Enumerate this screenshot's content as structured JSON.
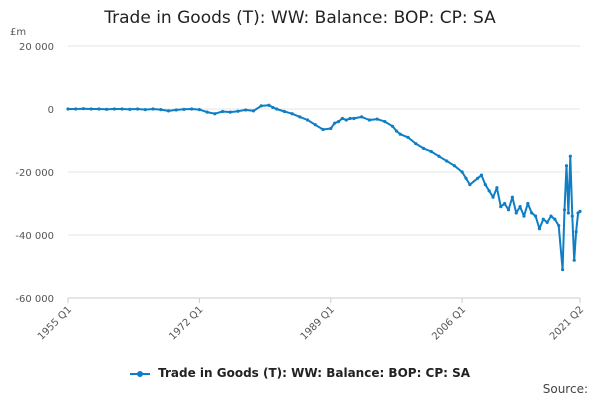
{
  "title": "Trade in Goods (T): WW: Balance: BOP: CP: SA",
  "source_label": "Source:",
  "legend": {
    "label": "Trade in Goods (T): WW: Balance: BOP: CP: SA"
  },
  "colors": {
    "series": "#0f7ec4",
    "grid": "#e6e6e6",
    "axis": "#cccccc"
  },
  "chart_data": {
    "type": "line",
    "title": "Trade in Goods (T): WW: Balance: BOP: CP: SA",
    "ylabel": "£m",
    "ylim": [
      -60000,
      20000
    ],
    "y_ticks": [
      20000,
      0,
      -20000,
      -40000,
      -60000
    ],
    "y_tick_labels": [
      "20 000",
      "0",
      "-20 000",
      "-40 000",
      "-60 000"
    ],
    "x_tick_labels": [
      "1955 Q1",
      "1972 Q1",
      "1989 Q1",
      "2006 Q1",
      "2021 Q2"
    ],
    "x_ticks": [
      1955.0,
      1972.0,
      1989.0,
      2006.0,
      2021.25
    ],
    "xlim": [
      1955.0,
      2021.25
    ],
    "grid": true,
    "legend_position": "bottom",
    "series": [
      {
        "name": "Trade in Goods (T): WW: Balance: BOP: CP: SA",
        "x": [
          1955.0,
          1956.0,
          1957.0,
          1958.0,
          1959.0,
          1960.0,
          1961.0,
          1962.0,
          1963.0,
          1964.0,
          1965.0,
          1966.0,
          1967.0,
          1968.0,
          1969.0,
          1970.0,
          1971.0,
          1972.0,
          1973.0,
          1974.0,
          1975.0,
          1976.0,
          1977.0,
          1978.0,
          1979.0,
          1980.0,
          1981.0,
          1981.5,
          1982.0,
          1983.0,
          1984.0,
          1985.0,
          1986.0,
          1987.0,
          1988.0,
          1989.0,
          1989.5,
          1990.0,
          1990.5,
          1991.0,
          1991.5,
          1992.0,
          1993.0,
          1994.0,
          1995.0,
          1996.0,
          1997.0,
          1997.5,
          1998.0,
          1999.0,
          2000.0,
          2001.0,
          2002.0,
          2003.0,
          2004.0,
          2005.0,
          2006.0,
          2006.5,
          2007.0,
          2008.0,
          2008.5,
          2009.0,
          2009.5,
          2010.0,
          2010.5,
          2011.0,
          2011.5,
          2012.0,
          2012.5,
          2013.0,
          2013.5,
          2014.0,
          2014.5,
          2015.0,
          2015.5,
          2016.0,
          2016.5,
          2017.0,
          2017.5,
          2018.0,
          2018.5,
          2019.0,
          2019.25,
          2019.5,
          2019.75,
          2020.0,
          2020.25,
          2020.5,
          2020.75,
          2021.0,
          2021.25
        ],
        "values": [
          0,
          0,
          100,
          0,
          0,
          -100,
          0,
          0,
          -100,
          0,
          -200,
          0,
          -200,
          -600,
          -300,
          -100,
          0,
          -200,
          -1000,
          -1500,
          -800,
          -1000,
          -700,
          -300,
          -600,
          1000,
          1200,
          500,
          0,
          -800,
          -1500,
          -2500,
          -3500,
          -5000,
          -6500,
          -6200,
          -4500,
          -4000,
          -3000,
          -3500,
          -3000,
          -3000,
          -2500,
          -3500,
          -3200,
          -4000,
          -5500,
          -7000,
          -8000,
          -9000,
          -11000,
          -12500,
          -13500,
          -15000,
          -16500,
          -18000,
          -20000,
          -22000,
          -24000,
          -22000,
          -21000,
          -24000,
          -26000,
          -28000,
          -25000,
          -31000,
          -30000,
          -32000,
          -28000,
          -33000,
          -31000,
          -34000,
          -30000,
          -33000,
          -34000,
          -38000,
          -35000,
          -36000,
          -34000,
          -35000,
          -37000,
          -51000,
          -32000,
          -18000,
          -33000,
          -15000,
          -34000,
          -48000,
          -39000,
          -33000,
          -32500
        ]
      }
    ]
  }
}
